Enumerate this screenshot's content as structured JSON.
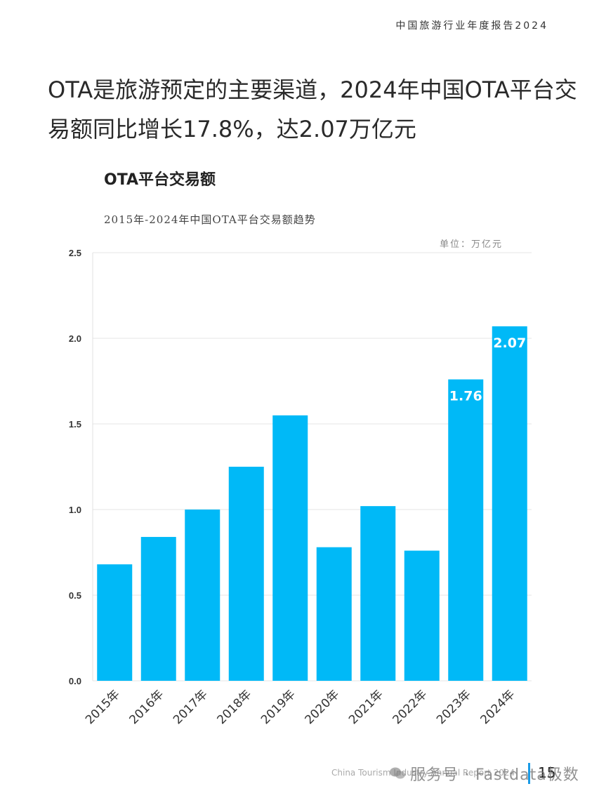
{
  "header": {
    "report_title": "中国旅游行业年度报告2024"
  },
  "headline": "OTA是旅游预定的主要渠道，2024年中国OTA平台交易额同比增长17.8%，达2.07万亿元",
  "chart_data": {
    "type": "bar",
    "title": "OTA平台交易额",
    "subtitle": "2015年-2024年中国OTA平台交易额趋势",
    "unit": "单位：万亿元",
    "categories": [
      "2015年",
      "2016年",
      "2017年",
      "2018年",
      "2019年",
      "2020年",
      "2021年",
      "2022年",
      "2023年",
      "2024年"
    ],
    "values": [
      0.68,
      0.84,
      1.0,
      1.25,
      1.55,
      0.78,
      1.02,
      0.76,
      1.76,
      2.07
    ],
    "data_labels": {
      "8": "1.76",
      "9": "2.07"
    },
    "yticks": [
      "0.0",
      "0.5",
      "1.0",
      "1.5",
      "2.0",
      "2.5"
    ],
    "ylim": [
      0,
      2.5
    ],
    "bar_color": "#00b9f7",
    "grid": true
  },
  "footer": {
    "english": "China Tourism Industry Annual Report 2024",
    "page_number": "15",
    "watermark": "服务号 · Fastdata极数",
    "divider_color": "#1a9be6"
  }
}
